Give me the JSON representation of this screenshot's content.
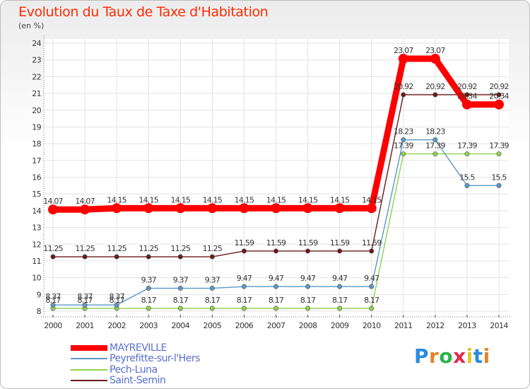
{
  "title": "Evolution du Taux de Taxe d'Habitation",
  "unit_label": "(en %)",
  "logo_text": "Proxiti",
  "chart_data": {
    "type": "line",
    "title": "Evolution du Taux de Taxe d'Habitation",
    "ylabel": "(en %)",
    "xlabel": "",
    "x": [
      "2000",
      "2001",
      "2002",
      "2003",
      "2004",
      "2005",
      "2006",
      "2007",
      "2008",
      "2009",
      "2010",
      "2011",
      "2012",
      "2013",
      "2014"
    ],
    "ylim": [
      8,
      24
    ],
    "yticks": [
      "8",
      "9",
      "10",
      "11",
      "12",
      "13",
      "14",
      "15",
      "16",
      "17",
      "18",
      "19",
      "20",
      "21",
      "22",
      "23",
      "24"
    ],
    "grid": true,
    "legend_position": "bottom-left",
    "series": [
      {
        "name": "Saint-Sernin",
        "color": "#6b1a1a",
        "values": [
          11.25,
          11.25,
          11.25,
          11.25,
          11.25,
          11.25,
          11.59,
          11.59,
          11.59,
          11.59,
          11.59,
          20.92,
          20.92,
          20.92,
          20.92
        ],
        "labels": [
          "11.25",
          "11.25",
          "11.25",
          "11.25",
          "11.25",
          "11.25",
          "11.59",
          "11.59",
          "11.59",
          "11.59",
          "11.59",
          "20.92",
          "20.92",
          "20.92",
          "20.92"
        ]
      },
      {
        "name": "Pech-Luna",
        "color": "#8ed14f",
        "values": [
          8.17,
          8.17,
          8.17,
          8.17,
          8.17,
          8.17,
          8.17,
          8.17,
          8.17,
          8.17,
          8.17,
          17.39,
          17.39,
          17.39,
          17.39
        ],
        "labels": [
          "8.17",
          "8.17",
          "8.17",
          "8.17",
          "8.17",
          "8.17",
          "8.17",
          "8.17",
          "8.17",
          "8.17",
          "8.17",
          "17.39",
          "17.39",
          "17.39",
          "17.39"
        ]
      },
      {
        "name": "Peyrefitte-sur-l'Hers",
        "color": "#5b98c7",
        "values": [
          8.37,
          8.37,
          8.37,
          9.37,
          9.37,
          9.37,
          9.47,
          9.47,
          9.47,
          9.47,
          9.47,
          18.23,
          18.23,
          15.5,
          15.5
        ],
        "labels": [
          "8.37",
          "8.37",
          "8.37",
          "9.37",
          "9.37",
          "9.37",
          "9.47",
          "9.47",
          "9.47",
          "9.47",
          "9.47",
          "18.23",
          "18.23",
          "15.5",
          "15.5"
        ]
      },
      {
        "name": "MAYREVILLE",
        "color": "#ff0000",
        "values": [
          14.07,
          14.07,
          14.15,
          14.15,
          14.15,
          14.15,
          14.15,
          14.15,
          14.15,
          14.15,
          14.15,
          23.07,
          23.07,
          20.34,
          20.34
        ],
        "labels": [
          "14.07",
          "14.07",
          "14.15",
          "14.15",
          "14.15",
          "14.15",
          "14.15",
          "14.15",
          "14.15",
          "14.15",
          "14.15",
          "23.07",
          "23.07",
          "20.34",
          "20.34"
        ]
      }
    ]
  },
  "legend": [
    {
      "name": "MAYREVILLE",
      "color": "#ff0000"
    },
    {
      "name": "Peyrefitte-sur-l'Hers",
      "color": "#5b98c7"
    },
    {
      "name": "Pech-Luna",
      "color": "#8ed14f"
    },
    {
      "name": "Saint-Sernin",
      "color": "#6b1a1a"
    }
  ]
}
